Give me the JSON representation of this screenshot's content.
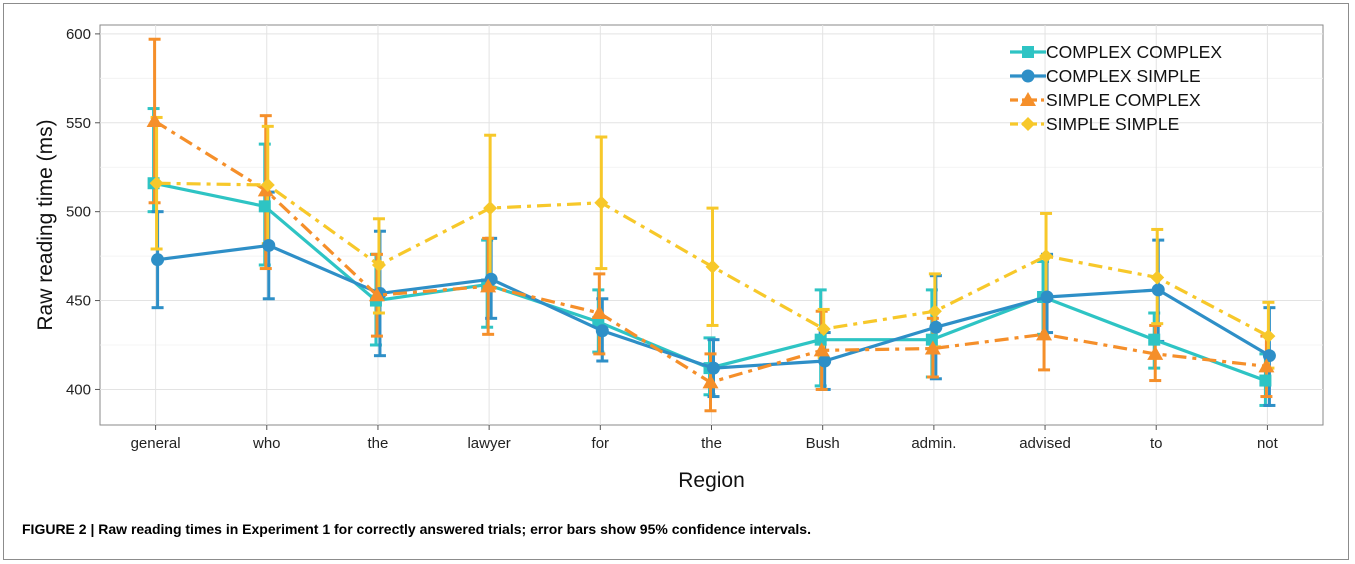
{
  "chart_data": {
    "type": "line",
    "xlabel": "Region",
    "ylabel": "Raw reading time (ms)",
    "ylim": [
      380,
      605
    ],
    "yticks": [
      400,
      450,
      500,
      550,
      600
    ],
    "categories": [
      "general",
      "who",
      "the",
      "lawyer",
      "for",
      "the",
      "Bush",
      "admin.",
      "advised",
      "to",
      "not"
    ],
    "grid": true,
    "legend_position": "top-right",
    "series": [
      {
        "name": "COMPLEX COMPLEX",
        "color": "#2ec4c4",
        "marker": "square",
        "dash": "solid",
        "values": [
          516,
          503,
          450,
          459,
          438,
          412,
          428,
          428,
          452,
          428,
          405
        ],
        "ci_low": [
          500,
          470,
          425,
          435,
          421,
          397,
          402,
          407,
          431,
          412,
          391
        ],
        "ci_high": [
          558,
          538,
          476,
          484,
          456,
          429,
          456,
          456,
          472,
          443,
          420
        ]
      },
      {
        "name": "COMPLEX SIMPLE",
        "color": "#2e8fc7",
        "marker": "circle",
        "dash": "solid",
        "values": [
          473,
          481,
          454,
          462,
          433,
          412,
          416,
          435,
          452,
          456,
          419
        ],
        "ci_low": [
          446,
          451,
          419,
          440,
          416,
          396,
          400,
          406,
          432,
          427,
          391
        ],
        "ci_high": [
          500,
          511,
          489,
          485,
          451,
          428,
          432,
          464,
          476,
          484,
          446
        ]
      },
      {
        "name": "SIMPLE COMPLEX",
        "color": "#f58f2a",
        "marker": "triangle",
        "dash": "dashdot",
        "values": [
          551,
          512,
          453,
          458,
          443,
          404,
          422,
          423,
          431,
          420,
          413
        ],
        "ci_low": [
          505,
          468,
          430,
          431,
          420,
          388,
          400,
          407,
          411,
          405,
          396
        ],
        "ci_high": [
          597,
          554,
          476,
          485,
          465,
          420,
          444,
          440,
          452,
          436,
          430
        ]
      },
      {
        "name": "SIMPLE SIMPLE",
        "color": "#f7c82a",
        "marker": "diamond",
        "dash": "dashdot",
        "values": [
          516,
          515,
          470,
          502,
          505,
          469,
          434,
          444,
          475,
          463,
          430
        ],
        "ci_low": [
          479,
          482,
          443,
          461,
          468,
          436,
          418,
          424,
          451,
          437,
          412
        ],
        "ci_high": [
          553,
          548,
          496,
          543,
          542,
          502,
          445,
          465,
          499,
          490,
          449
        ]
      }
    ]
  },
  "caption": {
    "label": "FIGURE 2 | Raw reading times in Experiment 1 for correctly answered trials; error bars show 95% confidence intervals."
  }
}
